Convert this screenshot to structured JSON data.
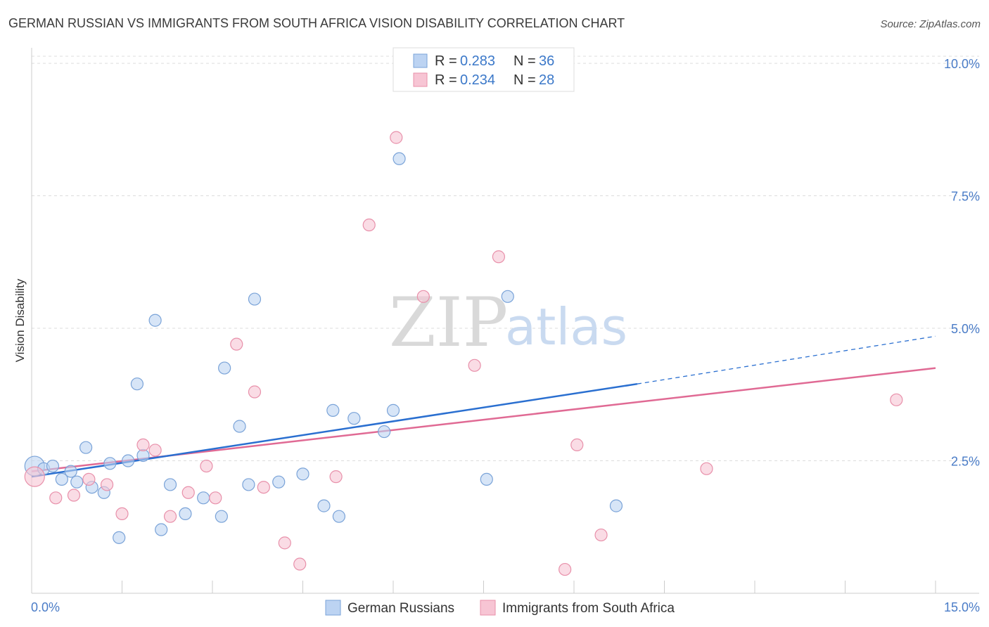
{
  "title": "GERMAN RUSSIAN VS IMMIGRANTS FROM SOUTH AFRICA VISION DISABILITY CORRELATION CHART",
  "source": "Source: ZipAtlas.com",
  "watermark": {
    "zip": "ZIP",
    "atlas": "atlas"
  },
  "colors": {
    "blue_fill": "#bcd3f2",
    "blue_stroke": "#7aa3d8",
    "blue_line": "#2a6fd0",
    "pink_fill": "#f7c5d4",
    "pink_stroke": "#e890aa",
    "pink_line": "#e06a94",
    "grid": "#dddddd",
    "axis_label": "#4a7cc7"
  },
  "legend": {
    "rows": [
      {
        "r_label": "R = ",
        "r_value": "0.283",
        "n_label": "N = ",
        "n_value": "36"
      },
      {
        "r_label": "R = ",
        "r_value": "0.234",
        "n_label": "N = ",
        "n_value": "28"
      }
    ]
  },
  "chart_data": {
    "type": "scatter",
    "title": "GERMAN RUSSIAN VS IMMIGRANTS FROM SOUTH AFRICA VISION DISABILITY CORRELATION CHART",
    "xlabel": "",
    "ylabel": "Vision Disability",
    "xlim": [
      0,
      15
    ],
    "ylim": [
      0,
      10.2
    ],
    "x_tick_labels": [
      "0.0%",
      "15.0%"
    ],
    "y_ticks": [
      2.5,
      5.0,
      7.5,
      10.0
    ],
    "y_tick_labels": [
      "2.5%",
      "5.0%",
      "7.5%",
      "10.0%"
    ],
    "grid": true,
    "legend_position": "top-center",
    "series": [
      {
        "name": "German Russians",
        "color": "blue",
        "points": [
          [
            0.05,
            2.4
          ],
          [
            0.2,
            2.35
          ],
          [
            0.35,
            2.4
          ],
          [
            0.5,
            2.15
          ],
          [
            0.65,
            2.3
          ],
          [
            0.75,
            2.1
          ],
          [
            0.9,
            2.75
          ],
          [
            1.0,
            2.0
          ],
          [
            1.2,
            1.9
          ],
          [
            1.3,
            2.45
          ],
          [
            1.45,
            1.05
          ],
          [
            1.6,
            2.5
          ],
          [
            1.75,
            3.95
          ],
          [
            1.85,
            2.6
          ],
          [
            2.05,
            5.15
          ],
          [
            2.15,
            1.2
          ],
          [
            2.3,
            2.05
          ],
          [
            2.55,
            1.5
          ],
          [
            2.85,
            1.8
          ],
          [
            3.15,
            1.45
          ],
          [
            3.2,
            4.25
          ],
          [
            3.45,
            3.15
          ],
          [
            3.6,
            2.05
          ],
          [
            3.7,
            5.55
          ],
          [
            4.1,
            2.1
          ],
          [
            4.5,
            2.25
          ],
          [
            4.85,
            1.65
          ],
          [
            5.0,
            3.45
          ],
          [
            5.1,
            1.45
          ],
          [
            5.35,
            3.3
          ],
          [
            5.85,
            3.05
          ],
          [
            6.0,
            3.45
          ],
          [
            6.1,
            8.2
          ],
          [
            7.55,
            2.15
          ],
          [
            7.9,
            5.6
          ],
          [
            9.7,
            1.65
          ]
        ],
        "trend": {
          "x": [
            0,
            10.05
          ],
          "y": [
            2.2,
            3.95
          ]
        },
        "trend_dashed": {
          "x": [
            10.05,
            15
          ],
          "y": [
            3.95,
            4.85
          ]
        }
      },
      {
        "name": "Immigrants from South Africa",
        "color": "pink",
        "points": [
          [
            0.05,
            2.2
          ],
          [
            0.4,
            1.8
          ],
          [
            0.7,
            1.85
          ],
          [
            0.95,
            2.15
          ],
          [
            1.25,
            2.05
          ],
          [
            1.5,
            1.5
          ],
          [
            1.85,
            2.8
          ],
          [
            2.05,
            2.7
          ],
          [
            2.3,
            1.45
          ],
          [
            2.6,
            1.9
          ],
          [
            2.9,
            2.4
          ],
          [
            3.05,
            1.8
          ],
          [
            3.4,
            4.7
          ],
          [
            3.7,
            3.8
          ],
          [
            3.85,
            2.0
          ],
          [
            4.2,
            0.95
          ],
          [
            4.45,
            0.55
          ],
          [
            5.05,
            2.2
          ],
          [
            5.6,
            6.95
          ],
          [
            6.05,
            8.6
          ],
          [
            6.5,
            5.6
          ],
          [
            7.35,
            4.3
          ],
          [
            7.75,
            6.35
          ],
          [
            8.85,
            0.45
          ],
          [
            9.05,
            2.8
          ],
          [
            9.45,
            1.1
          ],
          [
            11.2,
            2.35
          ],
          [
            14.35,
            3.65
          ]
        ],
        "trend": {
          "x": [
            0,
            15
          ],
          "y": [
            2.3,
            4.25
          ]
        }
      }
    ]
  }
}
